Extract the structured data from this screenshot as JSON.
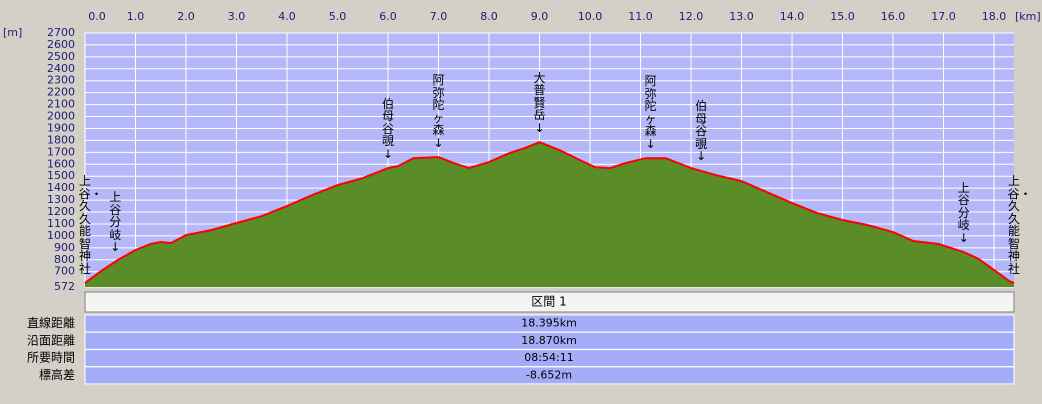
{
  "chart_data": {
    "type": "area",
    "x_label": "[km]",
    "y_label": "[m]",
    "x": [
      0,
      0.3,
      0.65,
      1.0,
      1.3,
      1.5,
      1.7,
      2.0,
      2.5,
      3.0,
      3.5,
      4.0,
      4.5,
      5.0,
      5.5,
      6.0,
      6.2,
      6.5,
      7.0,
      7.3,
      7.6,
      8.0,
      8.4,
      8.7,
      9.0,
      9.4,
      9.8,
      10.1,
      10.4,
      10.7,
      11.1,
      11.5,
      12.0,
      12.5,
      13.0,
      13.5,
      14.0,
      14.5,
      15.0,
      15.5,
      16.0,
      16.4,
      16.9,
      17.4,
      17.7,
      18.0,
      18.3,
      18.395
    ],
    "series": [
      {
        "color": "#ff0000",
        "fill": "#5a8c28",
        "values": [
          605,
          700,
          798,
          882,
          932,
          949,
          940,
          1007,
          1049,
          1108,
          1166,
          1250,
          1342,
          1426,
          1484,
          1568,
          1585,
          1651,
          1660,
          1610,
          1568,
          1618,
          1693,
          1735,
          1785,
          1718,
          1635,
          1576,
          1568,
          1610,
          1651,
          1651,
          1568,
          1509,
          1459,
          1367,
          1275,
          1191,
          1133,
          1091,
          1032,
          957,
          932,
          865,
          806,
          714,
          622,
          605
        ]
      }
    ],
    "xlim": [
      0,
      18.395
    ],
    "ylim": [
      572,
      2700
    ],
    "xticks": [
      {
        "value": 0,
        "label": "0.0"
      },
      {
        "value": 1,
        "label": "1.0"
      },
      {
        "value": 2,
        "label": "2.0"
      },
      {
        "value": 3,
        "label": "3.0"
      },
      {
        "value": 4,
        "label": "4.0"
      },
      {
        "value": 5,
        "label": "5.0"
      },
      {
        "value": 6,
        "label": "6.0"
      },
      {
        "value": 7,
        "label": "7.0"
      },
      {
        "value": 8,
        "label": "8.0"
      },
      {
        "value": 9,
        "label": "9.0"
      },
      {
        "value": 10,
        "label": "10.0"
      },
      {
        "value": 11,
        "label": "11.0"
      },
      {
        "value": 12,
        "label": "12.0"
      },
      {
        "value": 13,
        "label": "13.0"
      },
      {
        "value": 14,
        "label": "14.0"
      },
      {
        "value": 15,
        "label": "15.0"
      },
      {
        "value": 16,
        "label": "16.0"
      },
      {
        "value": 17,
        "label": "17.0"
      },
      {
        "value": 18,
        "label": "18.0"
      }
    ],
    "yticks": [
      572,
      700,
      800,
      900,
      1000,
      1100,
      1200,
      1300,
      1400,
      1500,
      1600,
      1700,
      1800,
      1900,
      2000,
      2100,
      2200,
      2300,
      2400,
      2500,
      2600,
      2700
    ],
    "grid": true,
    "annotations": [
      {
        "x": 0,
        "label": "上谷・久久能智神社"
      },
      {
        "x": 0.6,
        "label": "上谷分岐↓"
      },
      {
        "x": 6.0,
        "label": "伯母谷覗↓"
      },
      {
        "x": 7.0,
        "label": "阿弥陀ヶ森↓"
      },
      {
        "x": 9.0,
        "label": "大普賢岳↓"
      },
      {
        "x": 11.2,
        "label": "阿弥陀ヶ森↓"
      },
      {
        "x": 12.2,
        "label": "伯母谷覗↓"
      },
      {
        "x": 17.4,
        "label": "上谷分岐↓"
      },
      {
        "x": 18.395,
        "label": "上谷・久久能智神社"
      }
    ]
  },
  "table": {
    "header": "区間 1",
    "rows": [
      [
        "直線距離",
        "18.395km"
      ],
      [
        "沿面距離",
        "18.870km"
      ],
      [
        "所要時間",
        "08:54:11"
      ],
      [
        "標高差",
        "-8.652m"
      ]
    ]
  }
}
